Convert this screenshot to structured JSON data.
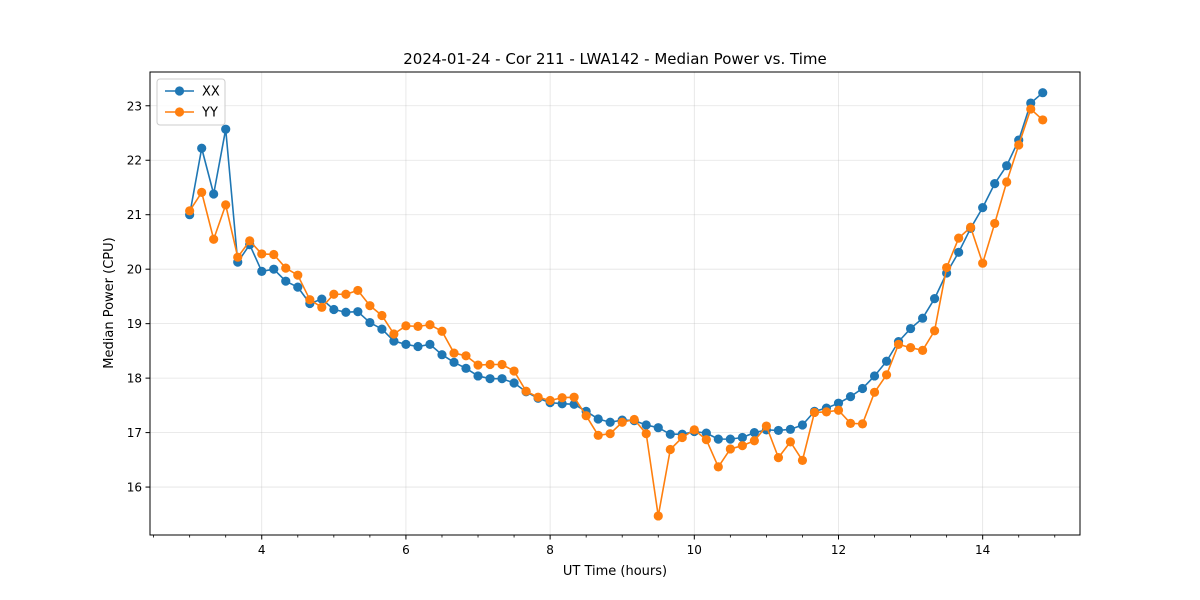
{
  "chart_data": {
    "type": "line",
    "title": "2024-01-24 - Cor 211 - LWA142 - Median Power vs. Time",
    "xlabel": "UT Time (hours)",
    "ylabel": "Median Power (CPU)",
    "xlim": [
      2.45,
      15.35
    ],
    "ylim": [
      15.12,
      23.62
    ],
    "xticks": [
      4,
      6,
      8,
      10,
      12,
      14
    ],
    "xtick_labels": [
      "4",
      "6",
      "8",
      "10",
      "12",
      "14"
    ],
    "yticks": [
      16,
      17,
      18,
      19,
      20,
      21,
      22,
      23
    ],
    "ytick_labels": [
      "16",
      "17",
      "18",
      "19",
      "20",
      "21",
      "22",
      "23"
    ],
    "grid": true,
    "legend_position": "top-left",
    "x": [
      3.0,
      3.167,
      3.333,
      3.5,
      3.667,
      3.833,
      4.0,
      4.167,
      4.333,
      4.5,
      4.667,
      4.833,
      5.0,
      5.167,
      5.333,
      5.5,
      5.667,
      5.833,
      6.0,
      6.167,
      6.333,
      6.5,
      6.667,
      6.833,
      7.0,
      7.167,
      7.333,
      7.5,
      7.667,
      7.833,
      8.0,
      8.167,
      8.333,
      8.5,
      8.667,
      8.833,
      9.0,
      9.167,
      9.333,
      9.5,
      9.667,
      9.833,
      10.0,
      10.167,
      10.333,
      10.5,
      10.667,
      10.833,
      11.0,
      11.167,
      11.333,
      11.5,
      11.667,
      11.833,
      12.0,
      12.167,
      12.333,
      12.5,
      12.667,
      12.833,
      13.0,
      13.167,
      13.333,
      13.5,
      13.667,
      13.833,
      14.0,
      14.167,
      14.333,
      14.5,
      14.667,
      14.833
    ],
    "series": [
      {
        "name": "XX",
        "color": "#1f77b4",
        "values": [
          21.0,
          22.22,
          21.38,
          22.57,
          20.13,
          20.45,
          19.96,
          20.0,
          19.78,
          19.67,
          19.37,
          19.45,
          19.26,
          19.21,
          19.22,
          19.02,
          18.9,
          18.68,
          18.62,
          18.58,
          18.62,
          18.43,
          18.29,
          18.18,
          18.04,
          17.99,
          17.99,
          17.91,
          17.75,
          17.63,
          17.55,
          17.53,
          17.52,
          17.39,
          17.25,
          17.19,
          17.23,
          17.22,
          17.14,
          17.09,
          16.97,
          16.97,
          17.02,
          16.99,
          16.88,
          16.88,
          16.91,
          17.0,
          17.05,
          17.04,
          17.06,
          17.14,
          17.39,
          17.45,
          17.54,
          17.66,
          17.81,
          18.04,
          18.31,
          18.67,
          18.91,
          19.1,
          19.46,
          19.93,
          20.31,
          20.75,
          21.13,
          21.57,
          21.9,
          22.37,
          23.05,
          23.24
        ]
      },
      {
        "name": "YY",
        "color": "#ff7f0e",
        "values": [
          21.07,
          21.41,
          20.55,
          21.18,
          20.22,
          20.52,
          20.28,
          20.27,
          20.02,
          19.89,
          19.44,
          19.3,
          19.54,
          19.54,
          19.61,
          19.33,
          19.15,
          18.81,
          18.96,
          18.95,
          18.98,
          18.86,
          18.46,
          18.41,
          18.24,
          18.25,
          18.25,
          18.13,
          17.76,
          17.65,
          17.59,
          17.64,
          17.65,
          17.31,
          16.95,
          16.98,
          17.19,
          17.24,
          16.98,
          15.47,
          16.69,
          16.91,
          17.05,
          16.87,
          16.37,
          16.7,
          16.76,
          16.85,
          17.12,
          16.54,
          16.83,
          16.49,
          17.37,
          17.38,
          17.41,
          17.17,
          17.16,
          17.74,
          18.06,
          18.62,
          18.56,
          18.51,
          18.87,
          20.03,
          20.57,
          20.77,
          20.11,
          20.84,
          21.6,
          22.28,
          22.94,
          22.74
        ]
      }
    ]
  }
}
